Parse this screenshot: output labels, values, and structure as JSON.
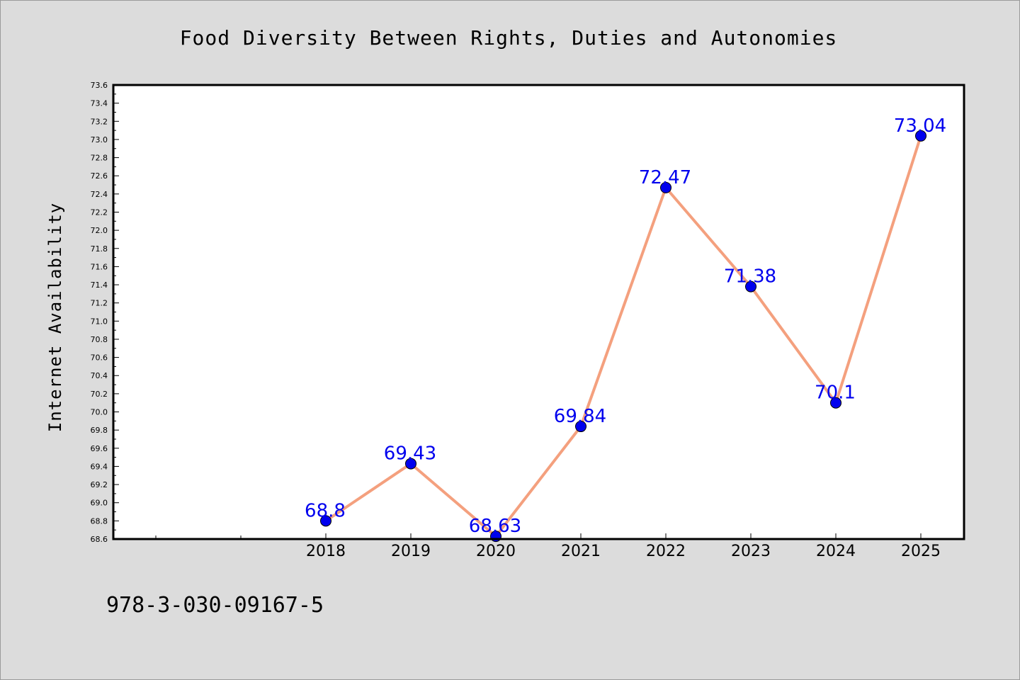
{
  "chart_data": {
    "type": "line",
    "title": "Food Diversity Between Rights, Duties and Autonomies",
    "xlabel": "",
    "ylabel": "Internet Availability",
    "x": [
      "2018",
      "2019",
      "2020",
      "2021",
      "2022",
      "2023",
      "2024",
      "2025"
    ],
    "series": [
      {
        "values": [
          68.8,
          69.43,
          68.63,
          69.84,
          72.47,
          71.38,
          70.1,
          73.04
        ]
      }
    ],
    "data_labels": [
      "68.8",
      "69.43",
      "68.63",
      "69.84",
      "72.47",
      "71.38",
      "70.1",
      "73.04"
    ],
    "ylim": [
      68.6,
      73.6
    ],
    "y_ticks": [
      "68.6",
      "68.8",
      "69.0",
      "69.2",
      "69.4",
      "69.6",
      "69.8",
      "70.0",
      "70.2",
      "70.4",
      "70.6",
      "70.8",
      "71.0",
      "71.2",
      "71.4",
      "71.6",
      "71.8",
      "72.0",
      "72.2",
      "72.4",
      "72.6",
      "72.8",
      "73.0",
      "73.2",
      "73.4",
      "73.6"
    ],
    "grid": false,
    "legend": "none",
    "colors": {
      "line": "#f4a07e",
      "marker": "#0000ee",
      "label": "#0000ee",
      "background": "#dcdcdc",
      "plot": "#ffffff"
    }
  },
  "footer": {
    "isbn": "978-3-030-09167-5"
  }
}
